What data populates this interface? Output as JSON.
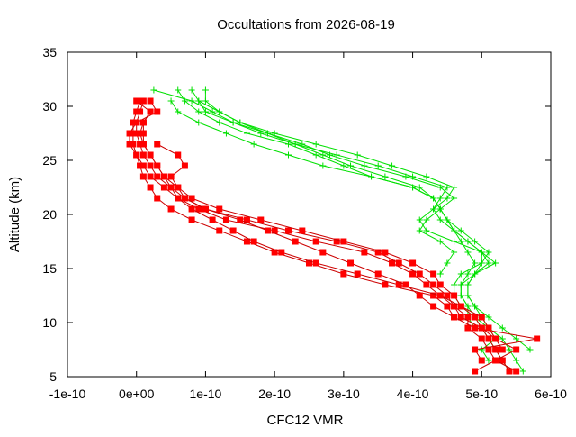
{
  "chart_data": {
    "type": "line",
    "title": "Occultations from 2026-08-19",
    "xlabel": "CFC12 VMR",
    "ylabel": "Altitude (km)",
    "xlim": [
      -1e-10,
      6e-10
    ],
    "ylim": [
      5,
      35
    ],
    "x_ticks": [
      -1e-10,
      0,
      1e-10,
      2e-10,
      3e-10,
      4e-10,
      5e-10,
      6e-10
    ],
    "x_tick_labels": [
      "-1e-10",
      "0e+00",
      "1e-10",
      "2e-10",
      "3e-10",
      "4e-10",
      "5e-10",
      "6e-10"
    ],
    "y_ticks": [
      5,
      10,
      15,
      20,
      25,
      30,
      35
    ],
    "y_tick_labels": [
      "5",
      "10",
      "15",
      "20",
      "25",
      "30",
      "35"
    ],
    "grid": false,
    "legend": "none",
    "colors": {
      "red": "#ff0000",
      "red_line": "#cc0000",
      "green": "#00e000"
    },
    "series": [
      {
        "color": "red",
        "marker": "square",
        "points": [
          [
            4.9e-10,
            5.5
          ],
          [
            5.2e-10,
            6.5
          ],
          [
            5.1e-10,
            7.5
          ],
          [
            5e-10,
            8.5
          ],
          [
            4.8e-10,
            9.5
          ],
          [
            4.8e-10,
            10.5
          ],
          [
            4.6e-10,
            11.5
          ],
          [
            4.4e-10,
            12.5
          ],
          [
            4.2e-10,
            13.5
          ],
          [
            4e-10,
            14.5
          ],
          [
            3.7e-10,
            15.5
          ],
          [
            3.3e-10,
            16.5
          ],
          [
            2.6e-10,
            17.5
          ],
          [
            2e-10,
            18.5
          ],
          [
            1.3e-10,
            19.5
          ],
          [
            9e-11,
            20.5
          ],
          [
            6e-11,
            21.5
          ],
          [
            4e-11,
            22.5
          ],
          [
            2e-11,
            23.5
          ],
          [
            1e-11,
            24.5
          ],
          [
            0.0,
            25.5
          ],
          [
            -5e-12,
            26.5
          ],
          [
            -5e-12,
            27.5
          ],
          [
            -5e-12,
            28.5
          ],
          [
            0.0,
            29.5
          ],
          [
            5e-12,
            30.5
          ]
        ]
      },
      {
        "color": "red",
        "marker": "square",
        "points": [
          [
            5.4e-10,
            5.5
          ],
          [
            5.3e-10,
            6.5
          ],
          [
            5.2e-10,
            7.5
          ],
          [
            5.1e-10,
            8.5
          ],
          [
            5e-10,
            9.5
          ],
          [
            4.7e-10,
            10.5
          ],
          [
            4.6e-10,
            11.5
          ],
          [
            4.5e-10,
            12.5
          ],
          [
            4.3e-10,
            13.5
          ],
          [
            4.1e-10,
            14.5
          ],
          [
            3.8e-10,
            15.5
          ],
          [
            3.5e-10,
            16.5
          ],
          [
            2.9e-10,
            17.5
          ],
          [
            2.2e-10,
            18.5
          ],
          [
            1.6e-10,
            19.5
          ],
          [
            1e-10,
            20.5
          ],
          [
            7e-11,
            21.5
          ],
          [
            5e-11,
            22.5
          ],
          [
            3e-11,
            23.5
          ],
          [
            2e-11,
            24.5
          ],
          [
            1e-11,
            25.5
          ],
          [
            5e-12,
            26.5
          ],
          [
            0.0,
            27.5
          ],
          [
            0.0,
            28.5
          ],
          [
            5e-12,
            29.5
          ],
          [
            1e-11,
            30.5
          ]
        ]
      },
      {
        "color": "red",
        "marker": "square",
        "points": [
          [
            5e-10,
            6.5
          ],
          [
            4.9e-10,
            7.5
          ],
          [
            5.8e-10,
            8.5
          ],
          [
            4.9e-10,
            9.5
          ],
          [
            4.6e-10,
            10.5
          ],
          [
            4.5e-10,
            11.5
          ],
          [
            4.3e-10,
            12.5
          ],
          [
            3.6e-10,
            13.5
          ],
          [
            3e-10,
            14.5
          ],
          [
            2.5e-10,
            15.5
          ],
          [
            2e-10,
            16.5
          ],
          [
            1.6e-10,
            17.5
          ],
          [
            1.2e-10,
            18.5
          ],
          [
            8e-11,
            19.5
          ],
          [
            5e-11,
            20.5
          ],
          [
            3e-11,
            21.5
          ],
          [
            2e-11,
            22.5
          ],
          [
            1e-11,
            23.5
          ],
          [
            5e-12,
            24.5
          ],
          [
            0.0,
            25.5
          ],
          [
            -1e-11,
            26.5
          ],
          [
            -1e-11,
            27.5
          ],
          [
            0.0,
            28.5
          ],
          [
            3e-11,
            29.5
          ],
          [
            2e-11,
            30.5
          ]
        ]
      },
      {
        "color": "red",
        "marker": "square",
        "points": [
          [
            5.5e-10,
            5.5
          ],
          [
            5.2e-10,
            6.5
          ],
          [
            5.5e-10,
            7.5
          ],
          [
            5.2e-10,
            8.5
          ],
          [
            5e-10,
            9.5
          ],
          [
            4.9e-10,
            10.5
          ],
          [
            4.7e-10,
            11.5
          ],
          [
            4.6e-10,
            12.5
          ],
          [
            4.4e-10,
            13.5
          ],
          [
            4.3e-10,
            14.5
          ],
          [
            4e-10,
            15.5
          ],
          [
            3.6e-10,
            16.5
          ],
          [
            3e-10,
            17.5
          ],
          [
            2.4e-10,
            18.5
          ],
          [
            1.8e-10,
            19.5
          ],
          [
            1.2e-10,
            20.5
          ],
          [
            8e-11,
            21.5
          ],
          [
            6e-11,
            22.5
          ],
          [
            4e-11,
            23.5
          ],
          [
            3e-11,
            24.5
          ],
          [
            2e-11,
            25.5
          ],
          [
            1e-11,
            26.5
          ],
          [
            5e-12,
            27.5
          ],
          [
            1e-11,
            28.5
          ],
          [
            2e-11,
            29.5
          ],
          [
            0.0,
            30.5
          ]
        ]
      },
      {
        "color": "red",
        "marker": "square",
        "points": [
          [
            5.3e-10,
            7.5
          ],
          [
            5.2e-10,
            8.5
          ],
          [
            5.1e-10,
            9.5
          ],
          [
            5e-10,
            10.5
          ],
          [
            4.7e-10,
            11.5
          ],
          [
            4.4e-10,
            12.5
          ],
          [
            3.8e-10,
            13.5
          ],
          [
            3.2e-10,
            14.5
          ],
          [
            2.6e-10,
            15.5
          ],
          [
            2.1e-10,
            16.5
          ],
          [
            1.7e-10,
            17.5
          ],
          [
            1.4e-10,
            18.5
          ],
          [
            1.1e-10,
            19.5
          ],
          [
            8e-11,
            20.5
          ],
          [
            6e-11,
            21.5
          ],
          [
            5e-11,
            22.5
          ],
          [
            4e-11,
            23.5
          ],
          [
            3e-11,
            24.5
          ],
          [
            2e-11,
            25.5
          ],
          [
            1e-11,
            26.5
          ],
          [
            1e-11,
            27.5
          ],
          [
            1e-11,
            28.5
          ],
          [
            2e-11,
            29.5
          ]
        ]
      },
      {
        "color": "red",
        "marker": "square",
        "points": [
          [
            4.6e-10,
            10.5
          ],
          [
            4.3e-10,
            11.5
          ],
          [
            4.1e-10,
            12.5
          ],
          [
            3.9e-10,
            13.5
          ],
          [
            3.5e-10,
            14.5
          ],
          [
            3.1e-10,
            15.5
          ],
          [
            2.7e-10,
            16.5
          ],
          [
            2.3e-10,
            17.5
          ],
          [
            1.9e-10,
            18.5
          ],
          [
            1.5e-10,
            19.5
          ],
          [
            1e-10,
            20.5
          ],
          [
            7e-11,
            21.5
          ],
          [
            6e-11,
            22.5
          ],
          [
            5e-11,
            23.5
          ],
          [
            7e-11,
            24.5
          ],
          [
            6e-11,
            25.5
          ],
          [
            3e-11,
            26.5
          ]
        ]
      },
      {
        "color": "green",
        "marker": "plus",
        "points": [
          [
            5.4e-10,
            5.5
          ],
          [
            5.3e-10,
            6.5
          ],
          [
            5.2e-10,
            7.5
          ],
          [
            5.1e-10,
            8.5
          ],
          [
            5e-10,
            9.5
          ],
          [
            4.9e-10,
            10.5
          ],
          [
            4.8e-10,
            11.5
          ],
          [
            4.7e-10,
            12.5
          ],
          [
            4.7e-10,
            13.5
          ],
          [
            4.8e-10,
            14.5
          ],
          [
            4.9e-10,
            15.5
          ],
          [
            4.8e-10,
            16.5
          ],
          [
            4.7e-10,
            17.5
          ],
          [
            4.6e-10,
            18.5
          ],
          [
            4.5e-10,
            19.5
          ],
          [
            4.4e-10,
            20.5
          ],
          [
            4.3e-10,
            21.5
          ],
          [
            4e-10,
            22.5
          ],
          [
            3.4e-10,
            23.5
          ],
          [
            3e-10,
            24.5
          ],
          [
            2.6e-10,
            25.5
          ],
          [
            2.2e-10,
            26.5
          ],
          [
            1.6e-10,
            27.5
          ],
          [
            1.2e-10,
            28.5
          ],
          [
            9e-11,
            29.5
          ],
          [
            7e-11,
            30.5
          ],
          [
            6e-11,
            31.5
          ]
        ]
      },
      {
        "color": "green",
        "marker": "plus",
        "points": [
          [
            5.1e-10,
            6.5
          ],
          [
            5e-10,
            7.5
          ],
          [
            5.2e-10,
            8.5
          ],
          [
            5.1e-10,
            9.5
          ],
          [
            4.9e-10,
            10.5
          ],
          [
            4.7e-10,
            11.5
          ],
          [
            4.6e-10,
            12.5
          ],
          [
            4.6e-10,
            13.5
          ],
          [
            4.7e-10,
            14.5
          ],
          [
            5e-10,
            15.5
          ],
          [
            5.1e-10,
            16.5
          ],
          [
            4.9e-10,
            17.5
          ],
          [
            4.7e-10,
            18.5
          ],
          [
            4.5e-10,
            19.5
          ],
          [
            4.4e-10,
            20.5
          ],
          [
            4.3e-10,
            21.5
          ],
          [
            4.1e-10,
            22.5
          ],
          [
            3.6e-10,
            23.5
          ],
          [
            3.1e-10,
            24.5
          ],
          [
            2.7e-10,
            25.5
          ],
          [
            2.3e-10,
            26.5
          ],
          [
            1.9e-10,
            27.5
          ],
          [
            1.5e-10,
            28.5
          ],
          [
            1.2e-10,
            29.5
          ],
          [
            1e-10,
            30.5
          ],
          [
            1e-10,
            31.5
          ]
        ]
      },
      {
        "color": "green",
        "marker": "plus",
        "points": [
          [
            5.6e-10,
            5.5
          ],
          [
            5.5e-10,
            6.5
          ],
          [
            5.4e-10,
            7.5
          ],
          [
            5.3e-10,
            8.5
          ],
          [
            5.1e-10,
            9.5
          ],
          [
            5e-10,
            10.5
          ],
          [
            4.9e-10,
            11.5
          ],
          [
            4.8e-10,
            12.5
          ],
          [
            4.8e-10,
            13.5
          ],
          [
            4.9e-10,
            14.5
          ],
          [
            5.2e-10,
            15.5
          ],
          [
            5e-10,
            16.5
          ],
          [
            4.6e-10,
            17.5
          ],
          [
            4.2e-10,
            18.5
          ],
          [
            4.1e-10,
            19.5
          ],
          [
            4.3e-10,
            20.5
          ],
          [
            4.5e-10,
            21.5
          ],
          [
            4.6e-10,
            22.5
          ],
          [
            4.2e-10,
            23.5
          ],
          [
            3.7e-10,
            24.5
          ],
          [
            3.2e-10,
            25.5
          ],
          [
            2.6e-10,
            26.5
          ],
          [
            2e-10,
            27.5
          ],
          [
            1.5e-10,
            28.5
          ],
          [
            1.2e-10,
            29.5
          ],
          [
            9e-11,
            30.5
          ],
          [
            8e-11,
            31.5
          ]
        ]
      },
      {
        "color": "green",
        "marker": "plus",
        "points": [
          [
            5.7e-10,
            7.5
          ],
          [
            5.5e-10,
            8.5
          ],
          [
            5.3e-10,
            9.5
          ],
          [
            5.1e-10,
            10.5
          ],
          [
            4.9e-10,
            11.5
          ],
          [
            4.8e-10,
            12.5
          ],
          [
            4.8e-10,
            13.5
          ],
          [
            4.9e-10,
            14.5
          ],
          [
            5e-10,
            15.5
          ],
          [
            5e-10,
            16.5
          ],
          [
            4.8e-10,
            17.5
          ],
          [
            4.6e-10,
            18.5
          ],
          [
            4.4e-10,
            19.5
          ],
          [
            4.3e-10,
            20.5
          ],
          [
            4.4e-10,
            21.5
          ],
          [
            4.5e-10,
            22.5
          ],
          [
            4e-10,
            23.5
          ],
          [
            3.5e-10,
            24.5
          ],
          [
            2.9e-10,
            25.5
          ],
          [
            2.3e-10,
            26.5
          ],
          [
            1.8e-10,
            27.5
          ],
          [
            1.4e-10,
            28.5
          ],
          [
            1.1e-10,
            29.5
          ],
          [
            8e-11,
            30.5
          ],
          [
            2.5e-11,
            31.5
          ]
        ]
      },
      {
        "color": "green",
        "marker": "plus",
        "points": [
          [
            4.9e-10,
            9.5
          ],
          [
            4.8e-10,
            10.5
          ],
          [
            4.8e-10,
            11.5
          ],
          [
            4.7e-10,
            12.5
          ],
          [
            4.7e-10,
            13.5
          ],
          [
            4.9e-10,
            14.5
          ],
          [
            5.1e-10,
            15.5
          ],
          [
            5e-10,
            16.5
          ],
          [
            4.8e-10,
            17.5
          ],
          [
            4.6e-10,
            18.5
          ],
          [
            4.5e-10,
            19.5
          ],
          [
            4.4e-10,
            20.5
          ],
          [
            4.6e-10,
            21.5
          ],
          [
            4.4e-10,
            22.5
          ],
          [
            3.9e-10,
            23.5
          ],
          [
            3.3e-10,
            24.5
          ],
          [
            2.8e-10,
            25.5
          ],
          [
            2.4e-10,
            26.5
          ],
          [
            1.9e-10,
            27.5
          ],
          [
            1.4e-10,
            28.5
          ],
          [
            1e-10,
            29.5
          ],
          [
            9e-11,
            30.5
          ]
        ]
      },
      {
        "color": "green",
        "marker": "plus",
        "points": [
          [
            4.4e-10,
            14.5
          ],
          [
            4.5e-10,
            15.5
          ],
          [
            4.6e-10,
            16.5
          ],
          [
            4.4e-10,
            17.5
          ],
          [
            4.1e-10,
            18.5
          ],
          [
            4.2e-10,
            19.5
          ],
          [
            4.4e-10,
            20.5
          ],
          [
            4.3e-10,
            21.5
          ],
          [
            4e-10,
            22.5
          ],
          [
            3.4e-10,
            23.5
          ],
          [
            2.7e-10,
            24.5
          ],
          [
            2.2e-10,
            25.5
          ],
          [
            1.7e-10,
            26.5
          ],
          [
            1.3e-10,
            27.5
          ],
          [
            9e-11,
            28.5
          ],
          [
            6e-11,
            29.5
          ],
          [
            5e-11,
            30.5
          ]
        ]
      }
    ]
  }
}
